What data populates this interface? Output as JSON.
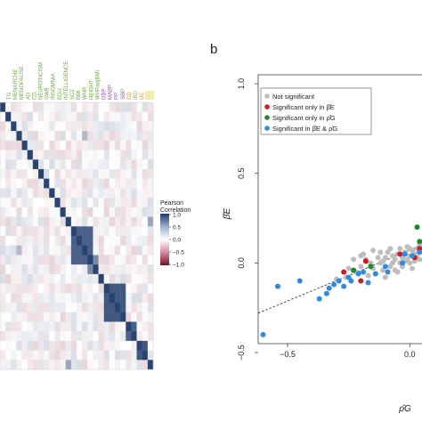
{
  "panels": {
    "a": {
      "label": ""
    },
    "b": {
      "label": "b"
    }
  },
  "colors": {
    "heat_high": "#1f3a6b",
    "heat_low": "#7a1025",
    "not_significant": "#bdbdbd",
    "only_beta_E": "#d7191c",
    "only_rho_G": "#1a8a2a",
    "both": "#2b8be6"
  },
  "chart_data": [
    {
      "type": "heatmap",
      "title": "",
      "trait_labels": [
        {
          "text": "TG",
          "color": "#6aaa3c"
        },
        {
          "text": "MENARCHE",
          "color": "#6aaa3c"
        },
        {
          "text": "MENOPAUSE",
          "color": "#6aaa3c"
        },
        {
          "text": "AD",
          "color": "#6aaa3c"
        },
        {
          "text": "CD",
          "color": "#6aaa3c"
        },
        {
          "text": "NEUROTICISM",
          "color": "#6aaa3c"
        },
        {
          "text": "SWB",
          "color": "#6aaa3c"
        },
        {
          "text": "INSOMNIA",
          "color": "#6aaa3c"
        },
        {
          "text": "EDU",
          "color": "#6aaa3c"
        },
        {
          "text": "INTELLIGENCE",
          "color": "#6aaa3c"
        },
        {
          "text": "SCZ",
          "color": "#6aaa3c"
        },
        {
          "text": "BMI",
          "color": "#6aaa3c"
        },
        {
          "text": "WHR",
          "color": "#6aaa3c"
        },
        {
          "text": "HEIGHT",
          "color": "#6aaa3c"
        },
        {
          "text": "WHRadjBMI",
          "color": "#6aaa3c"
        },
        {
          "text": "DBP",
          "color": "#9b4fc4"
        },
        {
          "text": "MABP",
          "color": "#9b4fc4"
        },
        {
          "text": "PP",
          "color": "#9b4fc4"
        },
        {
          "text": "SBP",
          "color": "#9b4fc4"
        },
        {
          "text": "CD",
          "color": "#e0912b"
        },
        {
          "text": "IBD",
          "color": "#e0912b"
        },
        {
          "text": "UC",
          "color": "#e0912b"
        },
        {
          "text": "",
          "color": "#e8d85a"
        }
      ],
      "colorbar": {
        "title_line1": "Pearson",
        "title_line2": "Correlation",
        "ticks": [
          "1.0",
          "0.5",
          "0.0",
          "−0.5",
          "−1.0"
        ]
      },
      "blocks": [
        {
          "start": 13,
          "size": 4,
          "value": 0.8
        },
        {
          "start": 16,
          "size": 2,
          "value": 0.6
        },
        {
          "start": 19,
          "size": 4,
          "value": 0.85
        },
        {
          "start": 23,
          "size": 2,
          "value": 0.8
        },
        {
          "start": 25,
          "size": 2,
          "value": 0.85
        }
      ]
    },
    {
      "type": "scatter",
      "xlabel": "ρ̂G",
      "ylabel": "β̂E",
      "xlim": [
        -0.62,
        0.05
      ],
      "ylim": [
        -0.45,
        1.05
      ],
      "x_ticks": [
        "−0.5",
        "0.0"
      ],
      "x_tick_values": [
        -0.5,
        0.0
      ],
      "y_ticks": [
        "−0.5",
        "0.0",
        "0.5",
        "1.0"
      ],
      "y_tick_values": [
        -0.5,
        0.0,
        0.5,
        1.0
      ],
      "legend_placement": "top-left",
      "legend": [
        {
          "label": "Not significant",
          "key": "not_significant"
        },
        {
          "label": "Significant only in β̂E",
          "key": "only_beta_E"
        },
        {
          "label": "Significant only in ρ̂G",
          "key": "only_rho_G"
        },
        {
          "label": "Significant in β̂E & ρ̂G",
          "key": "both"
        }
      ],
      "trend_line": {
        "x": [
          -0.62,
          0.05
        ],
        "y": [
          -0.28,
          0.1
        ]
      },
      "series": [
        {
          "key": "not_significant",
          "points": [
            [
              -0.2,
              -0.02
            ],
            [
              -0.18,
              0.02
            ],
            [
              -0.15,
              -0.03
            ],
            [
              -0.12,
              0.0
            ],
            [
              -0.1,
              0.03
            ],
            [
              -0.08,
              -0.02
            ],
            [
              -0.06,
              0.02
            ],
            [
              -0.05,
              0.05
            ],
            [
              -0.04,
              0.0
            ],
            [
              -0.03,
              0.03
            ],
            [
              -0.02,
              0.06
            ],
            [
              -0.01,
              0.02
            ],
            [
              0.0,
              0.04
            ],
            [
              0.01,
              0.07
            ],
            [
              0.02,
              0.05
            ],
            [
              0.03,
              0.03
            ],
            [
              0.04,
              0.06
            ],
            [
              0.0,
              0.0
            ],
            [
              -0.02,
              0.01
            ],
            [
              -0.07,
              0.04
            ],
            [
              -0.11,
              -0.04
            ],
            [
              -0.13,
              0.03
            ],
            [
              -0.16,
              0.0
            ],
            [
              -0.22,
              -0.05
            ],
            [
              -0.25,
              -0.03
            ],
            [
              -0.19,
              0.05
            ],
            [
              -0.09,
              0.06
            ],
            [
              -0.03,
              -0.02
            ],
            [
              0.02,
              0.01
            ],
            [
              0.03,
              0.08
            ],
            [
              -0.14,
              -0.06
            ],
            [
              -0.06,
              -0.04
            ],
            [
              -0.17,
              -0.07
            ],
            [
              0.01,
              -0.03
            ],
            [
              -0.04,
              0.08
            ],
            [
              -0.08,
              0.08
            ],
            [
              0.04,
              0.02
            ],
            [
              -0.12,
              0.06
            ],
            [
              -0.23,
              0.02
            ],
            [
              -0.26,
              -0.08
            ],
            [
              -0.1,
              -0.08
            ],
            [
              -0.01,
              0.09
            ],
            [
              0.04,
              0.1
            ],
            [
              -0.15,
              0.07
            ],
            [
              -0.05,
              -0.05
            ],
            [
              -0.3,
              -0.09
            ],
            [
              -0.2,
              0.04
            ],
            [
              0.0,
              0.08
            ],
            [
              -0.07,
              0.0
            ],
            [
              -0.11,
              0.01
            ]
          ]
        },
        {
          "key": "only_beta_E",
          "points": [
            [
              -0.27,
              -0.05
            ],
            [
              -0.2,
              -0.1
            ],
            [
              -0.18,
              0.01
            ],
            [
              -0.04,
              0.05
            ],
            [
              0.02,
              0.03
            ],
            [
              0.04,
              0.08
            ]
          ]
        },
        {
          "key": "only_rho_G",
          "points": [
            [
              -0.23,
              -0.04
            ],
            [
              -0.16,
              -0.02
            ],
            [
              0.03,
              0.2
            ],
            [
              0.04,
              0.12
            ]
          ]
        },
        {
          "key": "both",
          "points": [
            [
              -0.6,
              -0.4
            ],
            [
              -0.54,
              -0.13
            ],
            [
              -0.45,
              -0.1
            ],
            [
              -0.37,
              -0.2
            ],
            [
              -0.34,
              -0.17
            ],
            [
              -0.33,
              -0.14
            ],
            [
              -0.29,
              -0.1
            ],
            [
              -0.27,
              -0.13
            ],
            [
              -0.25,
              -0.08
            ],
            [
              -0.24,
              -0.1
            ],
            [
              -0.21,
              -0.06
            ],
            [
              -0.19,
              -0.05
            ],
            [
              -0.17,
              -0.11
            ],
            [
              -0.14,
              -0.06
            ],
            [
              -0.09,
              -0.05
            ],
            [
              -0.03,
              0.0
            ],
            [
              -0.02,
              0.05
            ],
            [
              0.01,
              0.04
            ],
            [
              0.04,
              0.06
            ],
            [
              -0.31,
              -0.12
            ],
            [
              -0.1,
              -0.02
            ]
          ]
        }
      ]
    }
  ]
}
